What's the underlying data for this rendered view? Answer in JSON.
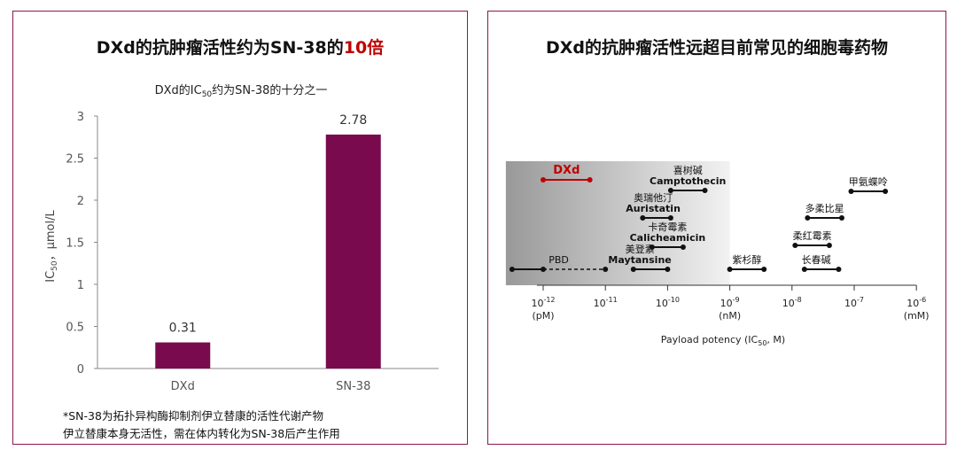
{
  "left": {
    "title_main": "DXd的抗肿瘤活性约为SN-38的",
    "title_highlight": "10倍",
    "footnotes": [
      "*SN-38为拓扑异构酶抑制剂伊立替康的活性代谢产物",
      "伊立替康本身无活性，需在体内转化为SN-38后产生作用"
    ]
  },
  "right": {
    "title": "DXd的抗肿瘤活性远超目前常见的细胞毒药物"
  },
  "colors": {
    "bar": "#7a0a4e",
    "border": "#8a1a4f",
    "dxd_red": "#c00000",
    "shade_dark": "#999999",
    "shade_light": "#f2f2f2"
  },
  "chart_data": [
    {
      "type": "bar",
      "title": "DXd的IC",
      "title_sub": "50",
      "title_tail": "约为SN-38的十分之一",
      "ylabel": "IC",
      "ylabel_sub": "50",
      "ylabel_tail": "，μmol/L",
      "categories": [
        "DXd",
        "SN-38"
      ],
      "values": [
        0.31,
        2.78
      ],
      "data_labels": [
        "0.31",
        "2.78"
      ],
      "ylim": [
        0,
        3
      ],
      "yticks": [
        {
          "value": 0,
          "label": "0"
        },
        {
          "value": 0.5,
          "label": "0.5"
        },
        {
          "value": 1,
          "label": "1"
        },
        {
          "value": 1.5,
          "label": "1.5"
        },
        {
          "value": 2,
          "label": "2"
        },
        {
          "value": 2.5,
          "label": "2.5"
        },
        {
          "value": 3,
          "label": "3"
        }
      ],
      "grid": false
    },
    {
      "type": "range",
      "xscale": "log10",
      "xlabel": "Payload potency (IC",
      "xlabel_sub": "50",
      "xlabel_tail": ", M)",
      "xlim": [
        -12.1,
        -6
      ],
      "shaded_range": [
        -12.6,
        -9
      ],
      "ticks": [
        {
          "exp": -12,
          "label": "-12",
          "unit": "(pM)"
        },
        {
          "exp": -11,
          "label": "-11",
          "unit": ""
        },
        {
          "exp": -10,
          "label": "-10",
          "unit": ""
        },
        {
          "exp": -9,
          "label": "-9",
          "unit": "(nM)"
        },
        {
          "exp": -8,
          "label": "-8",
          "unit": ""
        },
        {
          "exp": -7,
          "label": "-7",
          "unit": ""
        },
        {
          "exp": -6,
          "label": "-6",
          "unit": "(mM)"
        }
      ],
      "tick_base": "10",
      "ranges": [
        {
          "labels": [
            "DXd"
          ],
          "from": -12,
          "to": -11.25,
          "highlight": true
        },
        {
          "labels": [
            "喜树碱",
            "Camptothecin"
          ],
          "from": -9.95,
          "to": -9.4
        },
        {
          "labels": [
            "奥瑞他汀",
            "Auristatin"
          ],
          "from": -10.4,
          "to": -9.95
        },
        {
          "labels": [
            "卡奇霉素",
            "Calicheamicin"
          ],
          "from": -10.25,
          "to": -9.75
        },
        {
          "labels": [
            "美登素",
            "Maytansine"
          ],
          "from": -10.55,
          "to": -10
        },
        {
          "labels": [
            "PBD"
          ],
          "from": -12.5,
          "to": -12,
          "dashed_to": -11
        },
        {
          "labels": [
            "紫杉醇"
          ],
          "from": -9,
          "to": -8.45
        },
        {
          "labels": [
            "甲氨蝶呤"
          ],
          "from": -7.05,
          "to": -6.5
        },
        {
          "labels": [
            "多柔比星"
          ],
          "from": -7.75,
          "to": -7.2
        },
        {
          "labels": [
            "柔红霉素"
          ],
          "from": -7.95,
          "to": -7.4
        },
        {
          "labels": [
            "长春碱"
          ],
          "from": -7.8,
          "to": -7.25
        }
      ]
    }
  ]
}
